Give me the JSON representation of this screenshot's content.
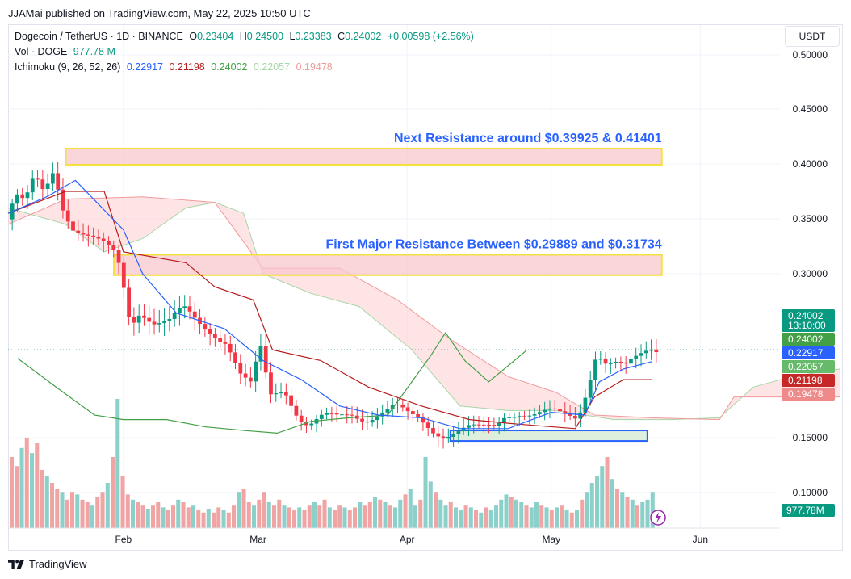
{
  "publisher": "JJAMai published on TradingView.com, May 22, 2025 10:50 UTC",
  "footer": {
    "brand": "TradingView"
  },
  "currency_button": "USDT",
  "legend": {
    "symbol": "Dogecoin / TetherUS · 1D · BINANCE",
    "o_label": "O",
    "o": "0.23404",
    "h_label": "H",
    "h": "0.24500",
    "l_label": "L",
    "l": "0.23383",
    "c_label": "C",
    "c": "0.24002",
    "change": "+0.00598 (+2.56%)",
    "vol_label": "Vol · DOGE",
    "vol": "977.78 M",
    "ichimoku_label": "Ichimoku (9, 26, 52, 26)",
    "ichimoku_values": [
      "0.22917",
      "0.21198",
      "0.24002",
      "0.22057",
      "0.19478"
    ]
  },
  "colors": {
    "up": "#089981",
    "down": "#f23645",
    "conversion": "#2962ff",
    "base": "#b71c1c",
    "lagging": "#43a047",
    "span_a": "#a5d6a7",
    "span_b": "#ef9a9a",
    "cloud_bull": "#c8e6c9",
    "cloud_bear": "#ffcdd2",
    "vol_up": "#80cbc4",
    "vol_down": "#ef9a9a",
    "resistance_fill": "#f8c7cc",
    "resistance_border": "#f5e13b",
    "support_fill": "#d8ecd8",
    "support_border": "#2962ff",
    "annotation": "#2962ff"
  },
  "price_badges": [
    {
      "value": "0.24002",
      "sub": "13:10:00",
      "color": "#089981"
    },
    {
      "value": "0.24002",
      "color": "#43a047"
    },
    {
      "value": "0.22917",
      "color": "#2962ff"
    },
    {
      "value": "0.22057",
      "color": "#66bb6a"
    },
    {
      "value": "0.21198",
      "color": "#c62828"
    },
    {
      "value": "0.19478",
      "color": "#ef8a8a"
    }
  ],
  "volume_badge": {
    "value": "977.78M",
    "color": "#089981"
  },
  "chart_data": {
    "type": "candlestick",
    "title": "Dogecoin / TetherUS · 1D · BINANCE",
    "x_ticks": [
      "Feb",
      "Mar",
      "Apr",
      "May",
      "Jun"
    ],
    "y_ticks": [
      "0.50000",
      "0.45000",
      "0.40000",
      "0.35000",
      "0.30000",
      "0.15000",
      "0.10000"
    ],
    "ylim": [
      0.095,
      0.51
    ],
    "date_range": [
      "2025-01-08",
      "2025-06-30"
    ],
    "annotations": [
      {
        "text": "Next Resistance around $0.39925 & 0.41401",
        "type": "resistance",
        "y1": 0.39925,
        "y2": 0.41401,
        "x_start": "2025-01-20",
        "x_end": "2025-05-24"
      },
      {
        "text": "First Major Resistance Between $0.29889 and $0.31734",
        "type": "resistance",
        "y1": 0.29889,
        "y2": 0.31734,
        "x_start": "2025-01-30",
        "x_end": "2025-05-24"
      },
      {
        "text": "",
        "type": "support",
        "y1": 0.147,
        "y2": 0.158,
        "x_start": "2025-04-10",
        "x_end": "2025-05-21"
      }
    ],
    "close_path": [
      [
        "2025-01-08",
        0.345
      ],
      [
        "2025-01-10",
        0.372
      ],
      [
        "2025-01-12",
        0.362
      ],
      [
        "2025-01-14",
        0.385
      ],
      [
        "2025-01-16",
        0.372
      ],
      [
        "2025-01-18",
        0.395
      ],
      [
        "2025-01-20",
        0.362
      ],
      [
        "2025-01-22",
        0.345
      ],
      [
        "2025-01-25",
        0.335
      ],
      [
        "2025-01-28",
        0.325
      ],
      [
        "2025-01-31",
        0.315
      ],
      [
        "2025-02-01",
        0.3
      ],
      [
        "2025-02-03",
        0.262
      ],
      [
        "2025-02-05",
        0.275
      ],
      [
        "2025-02-08",
        0.265
      ],
      [
        "2025-02-11",
        0.262
      ],
      [
        "2025-02-14",
        0.27
      ],
      [
        "2025-02-17",
        0.262
      ],
      [
        "2025-02-20",
        0.258
      ],
      [
        "2025-02-23",
        0.25
      ],
      [
        "2025-02-26",
        0.215
      ],
      [
        "2025-02-28",
        0.205
      ],
      [
        "2025-03-02",
        0.24
      ],
      [
        "2025-03-04",
        0.195
      ],
      [
        "2025-03-07",
        0.205
      ],
      [
        "2025-03-10",
        0.175
      ],
      [
        "2025-03-12",
        0.165
      ],
      [
        "2025-03-15",
        0.172
      ],
      [
        "2025-03-18",
        0.17
      ],
      [
        "2025-03-21",
        0.175
      ],
      [
        "2025-03-24",
        0.172
      ],
      [
        "2025-03-27",
        0.18
      ],
      [
        "2025-03-30",
        0.185
      ],
      [
        "2025-04-02",
        0.172
      ],
      [
        "2025-04-04",
        0.168
      ],
      [
        "2025-04-07",
        0.158
      ],
      [
        "2025-04-09",
        0.155
      ],
      [
        "2025-04-11",
        0.158
      ],
      [
        "2025-04-14",
        0.162
      ],
      [
        "2025-04-17",
        0.158
      ],
      [
        "2025-04-20",
        0.16
      ],
      [
        "2025-04-22",
        0.175
      ],
      [
        "2025-04-25",
        0.18
      ],
      [
        "2025-04-28",
        0.178
      ],
      [
        "2025-05-01",
        0.178
      ],
      [
        "2025-05-04",
        0.172
      ],
      [
        "2025-05-07",
        0.17
      ],
      [
        "2025-05-09",
        0.205
      ],
      [
        "2025-05-11",
        0.242
      ],
      [
        "2025-05-13",
        0.23
      ],
      [
        "2025-05-15",
        0.228
      ],
      [
        "2025-05-17",
        0.222
      ],
      [
        "2025-05-19",
        0.228
      ],
      [
        "2025-05-21",
        0.235
      ],
      [
        "2025-05-22",
        0.24
      ]
    ],
    "conversion_line": [
      [
        "2025-01-08",
        0.355
      ],
      [
        "2025-01-16",
        0.37
      ],
      [
        "2025-01-22",
        0.385
      ],
      [
        "2025-02-01",
        0.34
      ],
      [
        "2025-02-05",
        0.3
      ],
      [
        "2025-02-12",
        0.27
      ],
      [
        "2025-02-22",
        0.258
      ],
      [
        "2025-03-02",
        0.23
      ],
      [
        "2025-03-10",
        0.212
      ],
      [
        "2025-03-18",
        0.185
      ],
      [
        "2025-03-26",
        0.175
      ],
      [
        "2025-04-04",
        0.172
      ],
      [
        "2025-04-12",
        0.16
      ],
      [
        "2025-04-22",
        0.16
      ],
      [
        "2025-05-01",
        0.178
      ],
      [
        "2025-05-08",
        0.175
      ],
      [
        "2025-05-11",
        0.21
      ],
      [
        "2025-05-16",
        0.222
      ],
      [
        "2025-05-22",
        0.229
      ]
    ],
    "base_line": [
      [
        "2025-01-08",
        0.355
      ],
      [
        "2025-01-20",
        0.375
      ],
      [
        "2025-01-28",
        0.375
      ],
      [
        "2025-02-01",
        0.32
      ],
      [
        "2025-02-14",
        0.31
      ],
      [
        "2025-02-20",
        0.29
      ],
      [
        "2025-02-28",
        0.28
      ],
      [
        "2025-03-04",
        0.24
      ],
      [
        "2025-03-14",
        0.23
      ],
      [
        "2025-03-24",
        0.205
      ],
      [
        "2025-04-04",
        0.185
      ],
      [
        "2025-04-14",
        0.17
      ],
      [
        "2025-04-24",
        0.165
      ],
      [
        "2025-05-06",
        0.16
      ],
      [
        "2025-05-10",
        0.195
      ],
      [
        "2025-05-16",
        0.212
      ],
      [
        "2025-05-22",
        0.212
      ]
    ],
    "lagging_span": [
      [
        "2024-12-20",
        0.27
      ],
      [
        "2024-12-28",
        0.265
      ],
      [
        "2025-01-04",
        0.26
      ],
      [
        "2025-01-10",
        0.232
      ],
      [
        "2025-01-18",
        0.205
      ],
      [
        "2025-01-26",
        0.175
      ],
      [
        "2025-02-01",
        0.17
      ],
      [
        "2025-02-10",
        0.17
      ],
      [
        "2025-02-18",
        0.162
      ],
      [
        "2025-02-26",
        0.158
      ],
      [
        "2025-03-05",
        0.155
      ],
      [
        "2025-03-12",
        0.168
      ],
      [
        "2025-03-20",
        0.172
      ],
      [
        "2025-03-28",
        0.175
      ],
      [
        "2025-04-06",
        0.235
      ],
      [
        "2025-04-09",
        0.255
      ],
      [
        "2025-04-13",
        0.23
      ],
      [
        "2025-04-18",
        0.21
      ],
      [
        "2025-04-26",
        0.24
      ]
    ],
    "span_a": [
      [
        "2025-01-08",
        0.36
      ],
      [
        "2025-01-20",
        0.345
      ],
      [
        "2025-01-28",
        0.32
      ],
      [
        "2025-02-05",
        0.332
      ],
      [
        "2025-02-14",
        0.36
      ],
      [
        "2025-02-20",
        0.365
      ],
      [
        "2025-02-26",
        0.355
      ],
      [
        "2025-03-02",
        0.3
      ],
      [
        "2025-03-12",
        0.285
      ],
      [
        "2025-03-22",
        0.275
      ],
      [
        "2025-04-02",
        0.24
      ],
      [
        "2025-04-12",
        0.185
      ],
      [
        "2025-04-22",
        0.18
      ],
      [
        "2025-05-02",
        0.18
      ],
      [
        "2025-05-14",
        0.17
      ],
      [
        "2025-05-26",
        0.17
      ],
      [
        "2025-06-05",
        0.172
      ],
      [
        "2025-06-12",
        0.205
      ],
      [
        "2025-06-20",
        0.215
      ],
      [
        "2025-06-30",
        0.222
      ]
    ],
    "span_b": [
      [
        "2025-01-08",
        0.345
      ],
      [
        "2025-01-20",
        0.368
      ],
      [
        "2025-02-05",
        0.37
      ],
      [
        "2025-02-20",
        0.365
      ],
      [
        "2025-03-02",
        0.305
      ],
      [
        "2025-03-18",
        0.305
      ],
      [
        "2025-03-30",
        0.28
      ],
      [
        "2025-04-10",
        0.25
      ],
      [
        "2025-04-22",
        0.215
      ],
      [
        "2025-05-02",
        0.2
      ],
      [
        "2025-05-10",
        0.175
      ],
      [
        "2025-05-22",
        0.172
      ],
      [
        "2025-06-05",
        0.17
      ],
      [
        "2025-06-08",
        0.195
      ],
      [
        "2025-06-30",
        0.195
      ]
    ],
    "volume": [
      [
        0.55,
        "d"
      ],
      [
        0.48,
        "d"
      ],
      [
        0.62,
        "u"
      ],
      [
        0.7,
        "d"
      ],
      [
        0.58,
        "u"
      ],
      [
        0.66,
        "d"
      ],
      [
        0.45,
        "d"
      ],
      [
        0.4,
        "u"
      ],
      [
        0.35,
        "d"
      ],
      [
        0.3,
        "d"
      ],
      [
        0.28,
        "u"
      ],
      [
        0.22,
        "d"
      ],
      [
        0.28,
        "d"
      ],
      [
        0.26,
        "u"
      ],
      [
        0.22,
        "d"
      ],
      [
        0.2,
        "d"
      ],
      [
        0.18,
        "u"
      ],
      [
        0.24,
        "d"
      ],
      [
        0.28,
        "d"
      ],
      [
        0.35,
        "u"
      ],
      [
        0.55,
        "d"
      ],
      [
        1.0,
        "u"
      ],
      [
        0.4,
        "d"
      ],
      [
        0.26,
        "d"
      ],
      [
        0.22,
        "u"
      ],
      [
        0.2,
        "d"
      ],
      [
        0.18,
        "d"
      ],
      [
        0.15,
        "u"
      ],
      [
        0.18,
        "d"
      ],
      [
        0.2,
        "d"
      ],
      [
        0.16,
        "u"
      ],
      [
        0.14,
        "d"
      ],
      [
        0.18,
        "d"
      ],
      [
        0.22,
        "u"
      ],
      [
        0.2,
        "d"
      ],
      [
        0.16,
        "d"
      ],
      [
        0.18,
        "u"
      ],
      [
        0.14,
        "d"
      ],
      [
        0.12,
        "d"
      ],
      [
        0.15,
        "u"
      ],
      [
        0.12,
        "d"
      ],
      [
        0.16,
        "d"
      ],
      [
        0.14,
        "u"
      ],
      [
        0.12,
        "d"
      ],
      [
        0.18,
        "d"
      ],
      [
        0.28,
        "u"
      ],
      [
        0.3,
        "d"
      ],
      [
        0.2,
        "d"
      ],
      [
        0.18,
        "u"
      ],
      [
        0.22,
        "d"
      ],
      [
        0.28,
        "d"
      ],
      [
        0.2,
        "u"
      ],
      [
        0.18,
        "d"
      ],
      [
        0.22,
        "d"
      ],
      [
        0.18,
        "u"
      ],
      [
        0.16,
        "d"
      ],
      [
        0.14,
        "d"
      ],
      [
        0.16,
        "u"
      ],
      [
        0.14,
        "d"
      ],
      [
        0.18,
        "d"
      ],
      [
        0.2,
        "u"
      ],
      [
        0.18,
        "d"
      ],
      [
        0.22,
        "d"
      ],
      [
        0.16,
        "u"
      ],
      [
        0.14,
        "d"
      ],
      [
        0.18,
        "d"
      ],
      [
        0.16,
        "u"
      ],
      [
        0.14,
        "d"
      ],
      [
        0.16,
        "d"
      ],
      [
        0.2,
        "u"
      ],
      [
        0.18,
        "d"
      ],
      [
        0.2,
        "d"
      ],
      [
        0.24,
        "u"
      ],
      [
        0.22,
        "d"
      ],
      [
        0.2,
        "u"
      ],
      [
        0.18,
        "d"
      ],
      [
        0.16,
        "u"
      ],
      [
        0.22,
        "u"
      ],
      [
        0.26,
        "d"
      ],
      [
        0.3,
        "u"
      ],
      [
        0.18,
        "u"
      ],
      [
        0.22,
        "d"
      ],
      [
        0.55,
        "u"
      ],
      [
        0.36,
        "u"
      ],
      [
        0.28,
        "d"
      ],
      [
        0.22,
        "u"
      ],
      [
        0.18,
        "u"
      ],
      [
        0.2,
        "d"
      ],
      [
        0.16,
        "u"
      ],
      [
        0.14,
        "u"
      ],
      [
        0.18,
        "d"
      ],
      [
        0.16,
        "u"
      ],
      [
        0.14,
        "d"
      ],
      [
        0.12,
        "u"
      ],
      [
        0.16,
        "d"
      ],
      [
        0.14,
        "u"
      ],
      [
        0.18,
        "u"
      ],
      [
        0.22,
        "u"
      ],
      [
        0.26,
        "u"
      ],
      [
        0.24,
        "d"
      ],
      [
        0.22,
        "u"
      ],
      [
        0.2,
        "u"
      ],
      [
        0.18,
        "d"
      ],
      [
        0.16,
        "u"
      ],
      [
        0.2,
        "u"
      ],
      [
        0.18,
        "d"
      ],
      [
        0.16,
        "u"
      ],
      [
        0.14,
        "d"
      ],
      [
        0.16,
        "u"
      ],
      [
        0.18,
        "d"
      ],
      [
        0.14,
        "u"
      ],
      [
        0.12,
        "d"
      ],
      [
        0.14,
        "u"
      ],
      [
        0.22,
        "d"
      ],
      [
        0.28,
        "u"
      ],
      [
        0.35,
        "u"
      ],
      [
        0.4,
        "u"
      ],
      [
        0.48,
        "u"
      ],
      [
        0.55,
        "d"
      ],
      [
        0.38,
        "u"
      ],
      [
        0.3,
        "d"
      ],
      [
        0.28,
        "u"
      ],
      [
        0.24,
        "d"
      ],
      [
        0.22,
        "u"
      ],
      [
        0.18,
        "d"
      ],
      [
        0.2,
        "u"
      ],
      [
        0.22,
        "u"
      ],
      [
        0.28,
        "u"
      ]
    ]
  }
}
